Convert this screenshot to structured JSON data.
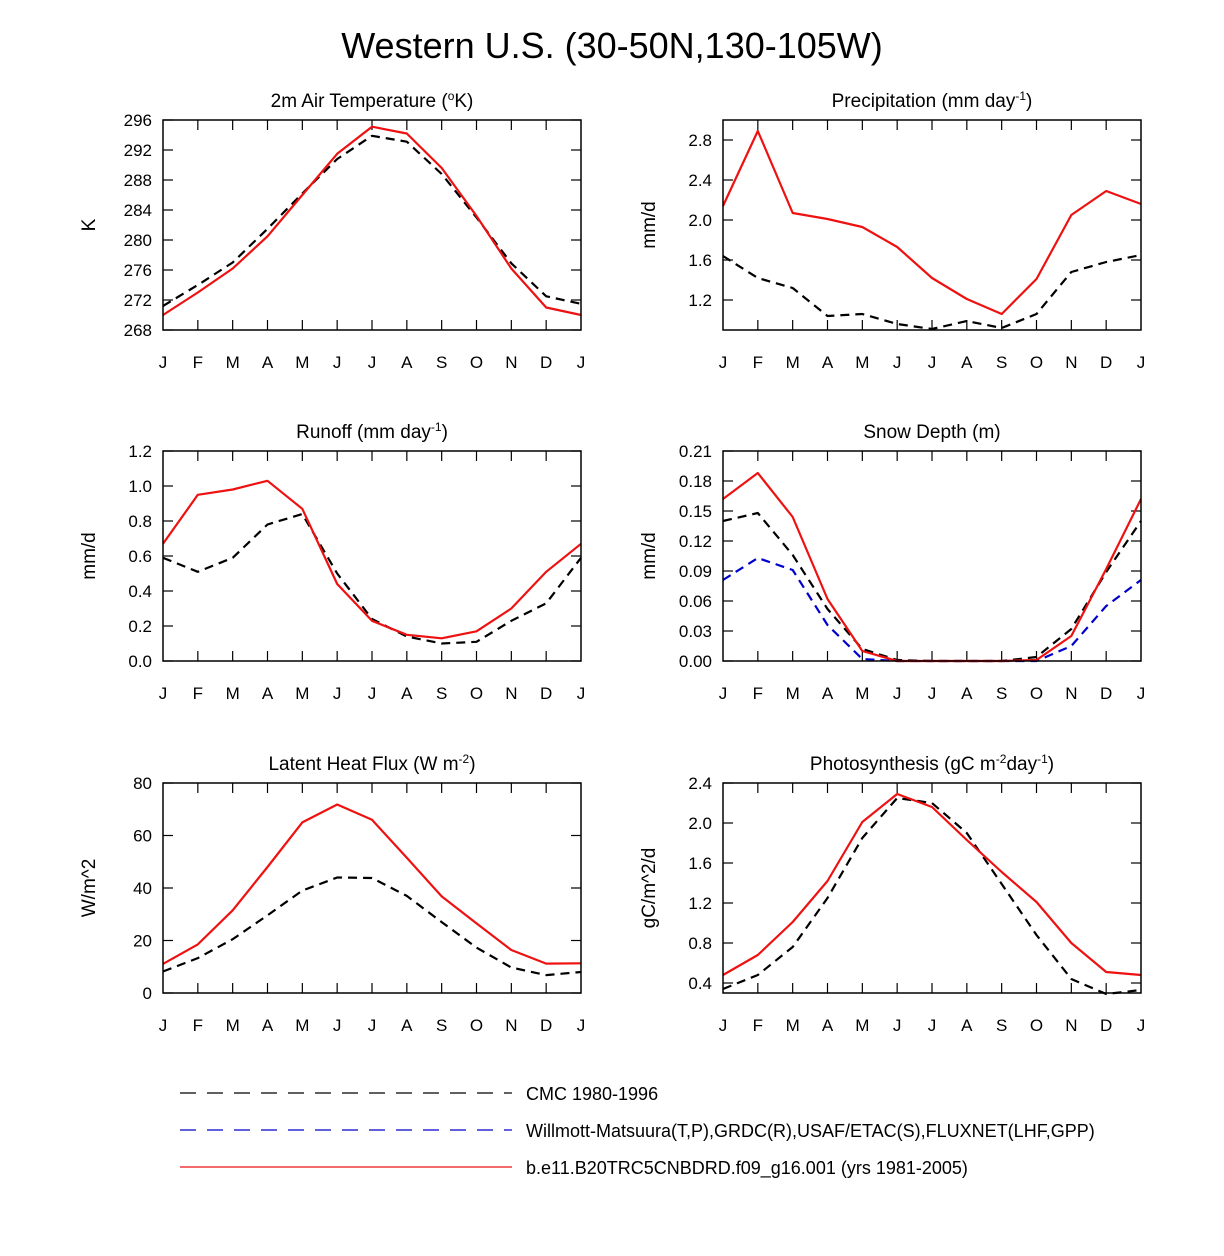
{
  "figure_title": "Western U.S. (30-50N,130-105W)",
  "months": [
    "J",
    "F",
    "M",
    "A",
    "M",
    "J",
    "J",
    "A",
    "S",
    "O",
    "N",
    "D",
    "J"
  ],
  "colors": {
    "cmc": "#000000",
    "obs": "#0000cc",
    "model": "#ee1111"
  },
  "legend": [
    {
      "id": "cmc",
      "label": "CMC 1980-1996",
      "color": "#000000",
      "style": "dashed"
    },
    {
      "id": "obs",
      "label": "Willmott-Matsuura(T,P),GRDC(R),USAF/ETAC(S),FLUXNET(LHF,GPP)",
      "color": "#0000cc",
      "style": "dashed"
    },
    {
      "id": "model",
      "label": "b.e11.B20TRC5CNBDRD.f09_g16.001 (yrs 1981-2005)",
      "color": "#ee1111",
      "style": "solid"
    }
  ],
  "chart_data": [
    {
      "type": "line",
      "title_main": "2m Air Temperature (",
      "title_sup": "o",
      "title_end": "K)",
      "ylabel": "K",
      "ylim": [
        268,
        296
      ],
      "yticks": [
        268,
        272,
        276,
        280,
        284,
        288,
        292,
        296
      ],
      "ytick_labels": [
        "268",
        "272",
        "276",
        "280",
        "284",
        "288",
        "292",
        "296"
      ],
      "series": [
        {
          "name": "CMC 1980-1996",
          "key": "cmc",
          "values": [
            271.2,
            274.0,
            277.0,
            281.5,
            286.2,
            290.8,
            293.9,
            293.1,
            288.8,
            283.0,
            276.9,
            272.5,
            271.5
          ]
        },
        {
          "name": "b.e11.B20TRC5CNBDRD.f09_g16.001 (yrs 1981-2005)",
          "key": "model",
          "values": [
            270.0,
            273.0,
            276.2,
            280.5,
            286.0,
            291.5,
            295.1,
            294.2,
            289.6,
            283.2,
            276.2,
            271.0,
            270.0
          ]
        }
      ]
    },
    {
      "type": "line",
      "title_main": "Precipitation (mm day",
      "title_sup": "-1",
      "title_end": ")",
      "ylabel": "mm/d",
      "ylim": [
        0.9,
        3.0
      ],
      "yticks": [
        1.2,
        1.6,
        2.0,
        2.4,
        2.8
      ],
      "ytick_labels": [
        "1.2",
        "1.6",
        "2.0",
        "2.4",
        "2.8"
      ],
      "series": [
        {
          "name": "CMC 1980-1996",
          "key": "cmc",
          "values": [
            1.64,
            1.42,
            1.32,
            1.04,
            1.06,
            0.96,
            0.91,
            0.99,
            0.92,
            1.06,
            1.48,
            1.58,
            1.65
          ]
        },
        {
          "name": "b.e11.B20TRC5CNBDRD.f09_g16.001 (yrs 1981-2005)",
          "key": "model",
          "values": [
            2.14,
            2.89,
            2.07,
            2.01,
            1.93,
            1.73,
            1.42,
            1.21,
            1.06,
            1.41,
            2.05,
            2.29,
            2.16
          ]
        }
      ]
    },
    {
      "type": "line",
      "title_main": "Runoff (mm day",
      "title_sup": "-1",
      "title_end": ")",
      "ylabel": "mm/d",
      "ylim": [
        0.0,
        1.2
      ],
      "yticks": [
        0.0,
        0.2,
        0.4,
        0.6,
        0.8,
        1.0,
        1.2
      ],
      "ytick_labels": [
        "0.0",
        "0.2",
        "0.4",
        "0.6",
        "0.8",
        "1.0",
        "1.2"
      ],
      "series": [
        {
          "name": "CMC 1980-1996",
          "key": "cmc",
          "values": [
            0.59,
            0.51,
            0.59,
            0.78,
            0.84,
            0.5,
            0.24,
            0.14,
            0.1,
            0.11,
            0.23,
            0.33,
            0.59
          ]
        },
        {
          "name": "b.e11.B20TRC5CNBDRD.f09_g16.001 (yrs 1981-2005)",
          "key": "model",
          "values": [
            0.67,
            0.95,
            0.98,
            1.03,
            0.87,
            0.44,
            0.23,
            0.15,
            0.13,
            0.17,
            0.3,
            0.51,
            0.67
          ]
        }
      ]
    },
    {
      "type": "line",
      "title_main": "Snow Depth (m)",
      "title_sup": "",
      "title_end": "",
      "ylabel": "mm/d",
      "ylim": [
        0.0,
        0.21
      ],
      "yticks": [
        0.0,
        0.03,
        0.06,
        0.09,
        0.12,
        0.15,
        0.18,
        0.21
      ],
      "ytick_labels": [
        "0.00",
        "0.03",
        "0.06",
        "0.09",
        "0.12",
        "0.15",
        "0.18",
        "0.21"
      ],
      "series": [
        {
          "name": "CMC 1980-1996",
          "key": "cmc",
          "values": [
            0.14,
            0.148,
            0.106,
            0.052,
            0.012,
            0.001,
            0.0,
            0.0,
            0.0,
            0.004,
            0.032,
            0.089,
            0.14
          ]
        },
        {
          "name": "Willmott-Matsuura(T,P),GRDC(R),USAF/ETAC(S),FLUXNET(LHF,GPP)",
          "key": "obs",
          "values": [
            0.081,
            0.103,
            0.091,
            0.036,
            0.002,
            0.0,
            0.0,
            0.0,
            0.0,
            0.0,
            0.015,
            0.055,
            0.081
          ]
        },
        {
          "name": "b.e11.B20TRC5CNBDRD.f09_g16.001 (yrs 1981-2005)",
          "key": "model",
          "values": [
            0.162,
            0.188,
            0.144,
            0.062,
            0.01,
            0.0,
            0.0,
            0.0,
            0.0,
            0.001,
            0.025,
            0.092,
            0.162
          ]
        }
      ]
    },
    {
      "type": "line",
      "title_main": "Latent Heat Flux (W m",
      "title_sup": "-2",
      "title_end": ")",
      "ylabel": "W/m^2",
      "ylim": [
        0,
        80
      ],
      "yticks": [
        0,
        20,
        40,
        60,
        80
      ],
      "ytick_labels": [
        "0",
        "20",
        "40",
        "60",
        "80"
      ],
      "series": [
        {
          "name": "CMC 1980-1996",
          "key": "cmc",
          "values": [
            8.2,
            13.3,
            20.5,
            29.6,
            39.0,
            44.0,
            43.8,
            37.0,
            27.0,
            17.3,
            9.7,
            6.8,
            8.0
          ]
        },
        {
          "name": "b.e11.B20TRC5CNBDRD.f09_g16.001 (yrs 1981-2005)",
          "key": "model",
          "values": [
            11.1,
            18.5,
            31.5,
            48.0,
            65.0,
            71.8,
            66.0,
            51.5,
            36.8,
            26.5,
            16.4,
            11.2,
            11.3
          ]
        }
      ]
    },
    {
      "type": "line",
      "title_main": "Photosynthesis (gC m",
      "title_sup": "-2",
      "title_main2": "day",
      "title_sup2": "-1",
      "title_end": ")",
      "ylabel": "gC/m^2/d",
      "ylim": [
        0.3,
        2.4
      ],
      "yticks": [
        0.4,
        0.8,
        1.2,
        1.6,
        2.0,
        2.4
      ],
      "ytick_labels": [
        "0.4",
        "0.8",
        "1.2",
        "1.6",
        "2.0",
        "2.4"
      ],
      "series": [
        {
          "name": "CMC 1980-1996",
          "key": "cmc",
          "values": [
            0.34,
            0.48,
            0.76,
            1.25,
            1.85,
            2.25,
            2.2,
            1.9,
            1.39,
            0.88,
            0.44,
            0.29,
            0.33
          ]
        },
        {
          "name": "b.e11.B20TRC5CNBDRD.f09_g16.001 (yrs 1981-2005)",
          "key": "model",
          "values": [
            0.48,
            0.68,
            1.01,
            1.42,
            2.01,
            2.29,
            2.16,
            1.83,
            1.51,
            1.21,
            0.8,
            0.51,
            0.48
          ]
        }
      ]
    }
  ]
}
